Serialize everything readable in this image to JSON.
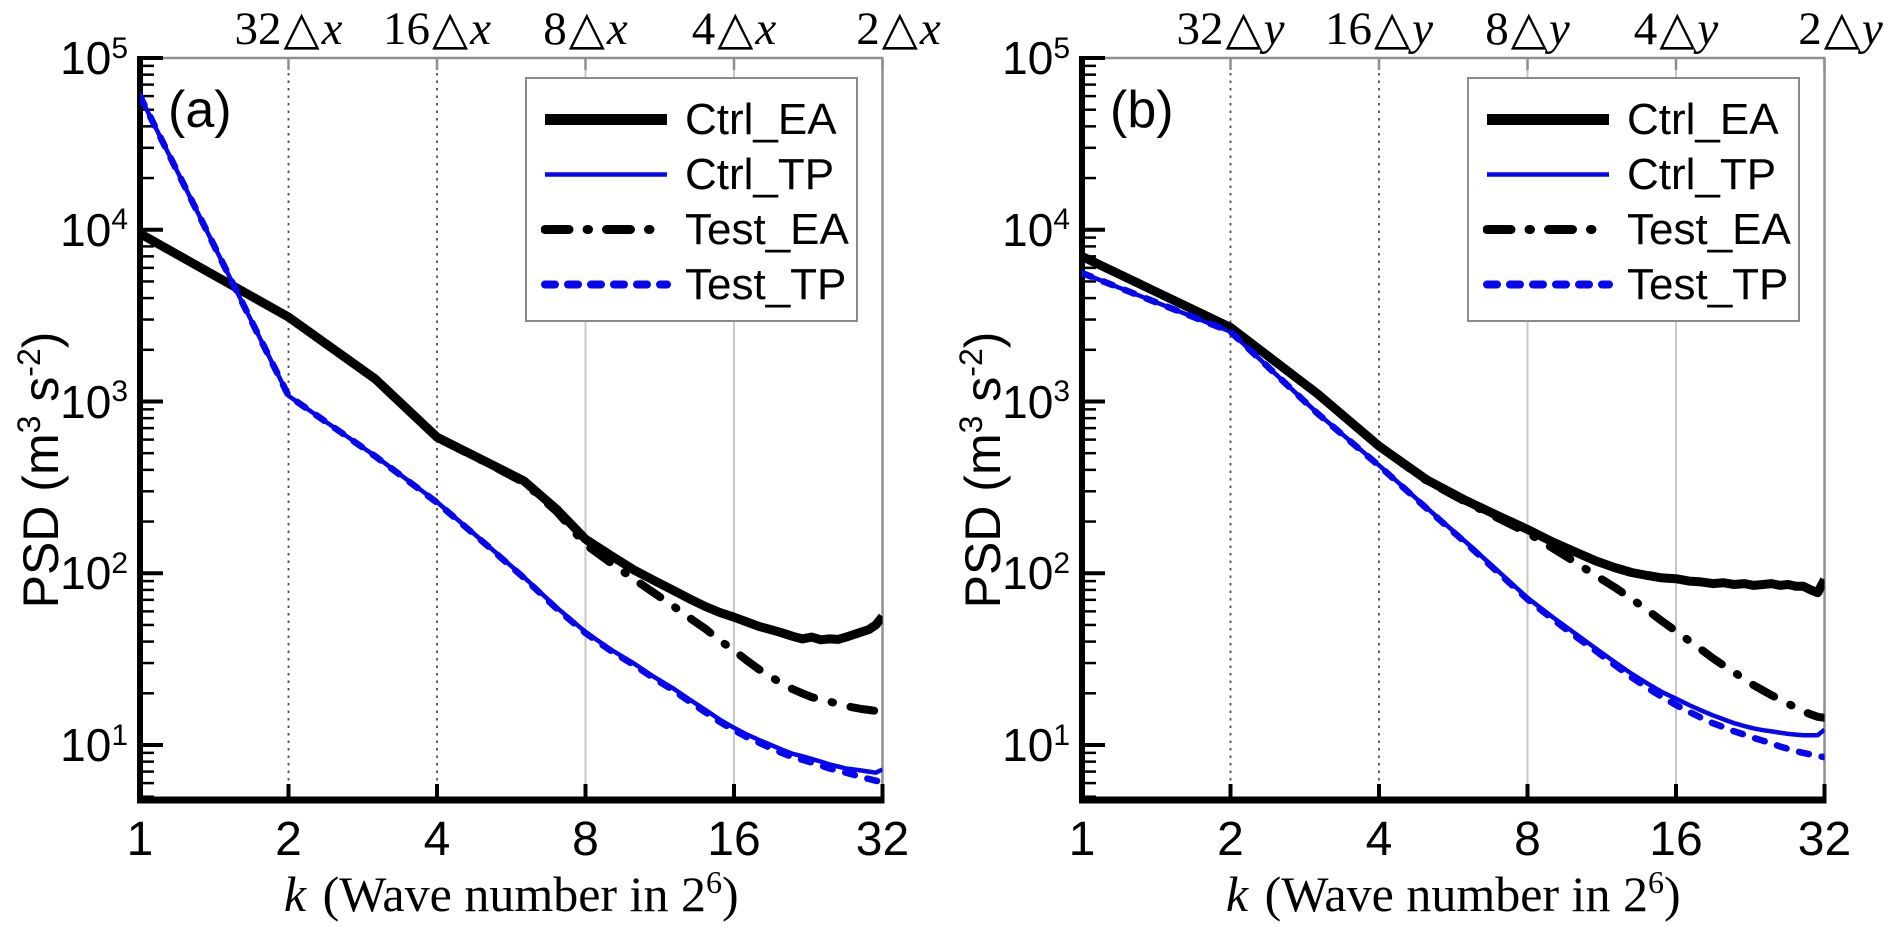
{
  "figure": {
    "background": "#ffffff",
    "triangle_glyph": "△",
    "colors": {
      "black": "#000000",
      "blue": "#0606f0",
      "grid_dotted": "#4d4d4d",
      "grid_solid": "#c8c8c8",
      "frame_gray": "#8f8f8f"
    },
    "y_axis": {
      "label_parts": {
        "pre": "PSD (m",
        "sup1": "3",
        "mid": " s",
        "sup2": "-2",
        "post": ")"
      },
      "tick_base": "10",
      "tick_exponents": [
        "5",
        "4",
        "3",
        "2",
        "1"
      ]
    },
    "x_axis": {
      "label_parts": {
        "k": "k",
        "text": " (Wave number in 2",
        "sup": "6",
        "post": ")"
      },
      "tick_labels": [
        "1",
        "2",
        "4",
        "8",
        "16",
        "32"
      ]
    },
    "legend_entries": [
      {
        "label": "Ctrl_EA",
        "style": "thick-solid",
        "color": "#000000"
      },
      {
        "label": "Ctrl_TP",
        "style": "thin-solid",
        "color": "#0606f0"
      },
      {
        "label": "Test_EA",
        "style": "dash-dot",
        "color": "#000000"
      },
      {
        "label": "Test_TP",
        "style": "dashed",
        "color": "#0606f0"
      }
    ],
    "panels": [
      {
        "letter": "(a)",
        "top_axis_labels": [
          {
            "value": "32",
            "unit": "x"
          },
          {
            "value": "16",
            "unit": "x"
          },
          {
            "value": "8",
            "unit": "x"
          },
          {
            "value": "4",
            "unit": "x"
          },
          {
            "value": "2",
            "unit": "x"
          }
        ]
      },
      {
        "letter": "(b)",
        "top_axis_labels": [
          {
            "value": "32",
            "unit": "y"
          },
          {
            "value": "16",
            "unit": "y"
          },
          {
            "value": "8",
            "unit": "y"
          },
          {
            "value": "4",
            "unit": "y"
          },
          {
            "value": "2",
            "unit": "y"
          }
        ]
      }
    ]
  },
  "chart_data": [
    {
      "type": "line",
      "panel": "a",
      "title": "",
      "xlabel": "k (Wave number in 2^6)",
      "ylabel": "PSD (m^3 s^-2)",
      "x_scale": "log2",
      "y_scale": "log10",
      "xlim": [
        1,
        32
      ],
      "ylim": [
        4.8,
        100000
      ],
      "x_ticks": [
        1,
        2,
        4,
        8,
        16,
        32
      ],
      "y_ticks": [
        10,
        100,
        1000,
        10000,
        100000
      ],
      "top_axis_ticks": {
        "positions": [
          2,
          4,
          8,
          16,
          32
        ],
        "labels": [
          "32Δx",
          "16Δx",
          "8Δx",
          "4Δx",
          "2Δx"
        ]
      },
      "grid": {
        "dotted_at": [
          2,
          4
        ],
        "solid_at": [
          8,
          16
        ]
      },
      "legend_position": "upper right",
      "x": [
        1,
        2,
        3,
        4,
        5,
        6,
        7,
        8,
        9,
        10,
        11,
        12,
        13,
        14,
        15,
        16,
        17,
        18,
        19,
        20,
        21,
        22,
        23,
        24,
        25,
        26,
        27,
        28,
        29,
        30,
        31,
        32
      ],
      "series": [
        {
          "name": "Ctrl_EA",
          "color": "#000000",
          "line": "solid",
          "width": 9,
          "values": [
            9500,
            3100,
            1350,
            620,
            450,
            345,
            235,
            158,
            127,
            105,
            91,
            80,
            71,
            64,
            59,
            55.5,
            52,
            49,
            47,
            45,
            43,
            41.5,
            42.5,
            41,
            41.5,
            41.2,
            42.5,
            44,
            45.5,
            47,
            50,
            56
          ]
        },
        {
          "name": "Ctrl_TP",
          "color": "#0606f0",
          "line": "solid",
          "width": 4.5,
          "values": [
            60000,
            1080,
            480,
            260,
            150,
            95,
            63,
            45.5,
            36,
            30,
            25,
            21.5,
            18.4,
            16,
            14,
            12.6,
            11.5,
            10.7,
            10,
            9.4,
            8.9,
            8.6,
            8.3,
            8.0,
            7.7,
            7.5,
            7.3,
            7.2,
            7.1,
            7.0,
            6.9,
            7.2
          ]
        },
        {
          "name": "Test_EA",
          "color": "#000000",
          "line": "dash-dot",
          "width": 8,
          "values": [
            9500,
            3100,
            1350,
            615,
            445,
            338,
            228,
            147,
            115,
            93,
            77,
            65,
            55,
            47.5,
            40.5,
            35.5,
            31,
            27.5,
            25,
            22.8,
            21.2,
            20,
            19,
            18.4,
            17.9,
            17.4,
            16.9,
            16.5,
            16.2,
            16,
            15.8,
            16.4
          ]
        },
        {
          "name": "Test_TP",
          "color": "#0606f0",
          "line": "dashed",
          "width": 6.5,
          "values": [
            60000,
            1080,
            479,
            258,
            149,
            94,
            62,
            44.8,
            35.4,
            29.4,
            24.5,
            21,
            17.9,
            15.5,
            13.6,
            12.2,
            11.1,
            10.3,
            9.6,
            9.0,
            8.5,
            8.2,
            7.9,
            7.6,
            7.3,
            7.1,
            6.9,
            6.7,
            6.5,
            6.35,
            6.2,
            6.1
          ]
        }
      ]
    },
    {
      "type": "line",
      "panel": "b",
      "title": "",
      "xlabel": "k (Wave number in 2^6)",
      "ylabel": "PSD (m^3 s^-2)",
      "x_scale": "log2",
      "y_scale": "log10",
      "xlim": [
        1,
        32
      ],
      "ylim": [
        4.8,
        100000
      ],
      "x_ticks": [
        1,
        2,
        4,
        8,
        16,
        32
      ],
      "y_ticks": [
        10,
        100,
        1000,
        10000,
        100000
      ],
      "top_axis_ticks": {
        "positions": [
          2,
          4,
          8,
          16,
          32
        ],
        "labels": [
          "32Δy",
          "16Δy",
          "8Δy",
          "4Δy",
          "2Δy"
        ]
      },
      "grid": {
        "dotted_at": [
          2,
          4
        ],
        "solid_at": [
          8,
          16
        ]
      },
      "legend_position": "upper right",
      "x": [
        1,
        2,
        3,
        4,
        5,
        6,
        7,
        8,
        9,
        10,
        11,
        12,
        13,
        14,
        15,
        16,
        17,
        18,
        19,
        20,
        21,
        22,
        23,
        24,
        25,
        26,
        27,
        28,
        29,
        30,
        31,
        32
      ],
      "series": [
        {
          "name": "Ctrl_EA",
          "color": "#000000",
          "line": "solid",
          "width": 9,
          "values": [
            7000,
            2700,
            1110,
            550,
            350,
            265,
            215,
            180,
            152,
            133,
            118,
            108,
            101,
            97,
            94,
            93,
            90,
            89,
            87,
            88,
            86,
            87,
            85,
            86,
            87,
            85,
            86,
            84,
            84,
            80,
            77,
            92
          ]
        },
        {
          "name": "Ctrl_TP",
          "color": "#0606f0",
          "line": "solid",
          "width": 4.5,
          "values": [
            5600,
            2550,
            855,
            425,
            240,
            152,
            102,
            72,
            55.5,
            44.5,
            36.5,
            30.5,
            26,
            22.8,
            20.3,
            18.6,
            17.1,
            15.9,
            14.9,
            14.1,
            13.4,
            12.9,
            12.5,
            12.2,
            12.0,
            11.8,
            11.6,
            11.5,
            11.4,
            11.4,
            11.4,
            12.3
          ]
        },
        {
          "name": "Test_EA",
          "color": "#000000",
          "line": "dash-dot",
          "width": 8,
          "values": [
            7000,
            2700,
            1110,
            548,
            345,
            260,
            208,
            172,
            140,
            116,
            97,
            83,
            71,
            61,
            52.5,
            46,
            40.5,
            36,
            32,
            29,
            26.5,
            24.2,
            22.3,
            20.8,
            19.5,
            18.4,
            17.4,
            16.5,
            15.7,
            15.1,
            14.6,
            14.4
          ]
        },
        {
          "name": "Test_TP",
          "color": "#0606f0",
          "line": "dashed",
          "width": 6.5,
          "values": [
            5600,
            2550,
            853,
            423,
            238,
            150,
            100,
            70.5,
            54,
            43,
            35.3,
            29.3,
            24.8,
            21.5,
            19,
            17.1,
            15.6,
            14.4,
            13.4,
            12.7,
            12.0,
            11.5,
            11.0,
            10.6,
            10.2,
            9.8,
            9.5,
            9.2,
            9.0,
            8.8,
            8.6,
            8.5
          ]
        }
      ]
    }
  ]
}
